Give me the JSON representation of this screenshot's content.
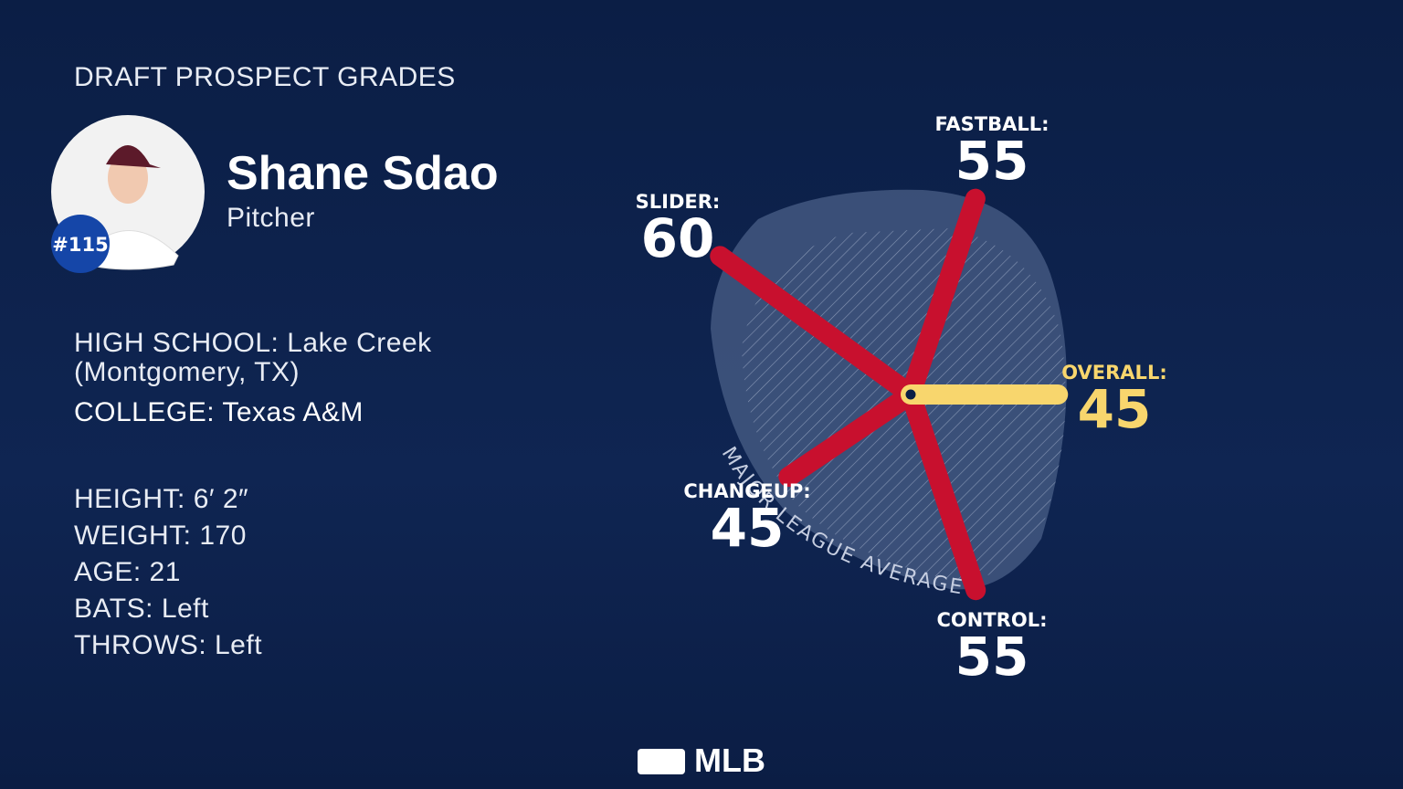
{
  "header": {
    "title": "DRAFT PROSPECT GRADES"
  },
  "profile": {
    "name": "Shane Sdao",
    "position": "Pitcher",
    "rank": "#115",
    "high_school": {
      "label": "HIGH SCHOOL:",
      "value": "Lake Creek",
      "location": "(Montgomery, TX)"
    },
    "college": {
      "label": "COLLEGE:",
      "value": "Texas A&M"
    },
    "details": [
      {
        "label": "HEIGHT:",
        "value": "6′ 2″"
      },
      {
        "label": "WEIGHT:",
        "value": 170
      },
      {
        "label": "AGE:",
        "value": 21
      },
      {
        "label": "BATS:",
        "value": "Left"
      },
      {
        "label": "THROWS:",
        "value": "Left"
      }
    ]
  },
  "chart_data": {
    "type": "radial",
    "categories": [
      "FASTBALL:",
      "SLIDER:",
      "CHANGEUP:",
      "CONTROL:",
      "OVERALL:"
    ],
    "values": [
      55,
      60,
      45,
      55,
      45
    ],
    "colors": [
      "#c8102e",
      "#c8102e",
      "#c8102e",
      "#c8102e",
      "#f8d66d"
    ],
    "rlim": [
      20,
      80
    ],
    "annotation": "MAJOR LEAGUE AVERAGE"
  },
  "footer": {
    "logo": "MLB"
  }
}
